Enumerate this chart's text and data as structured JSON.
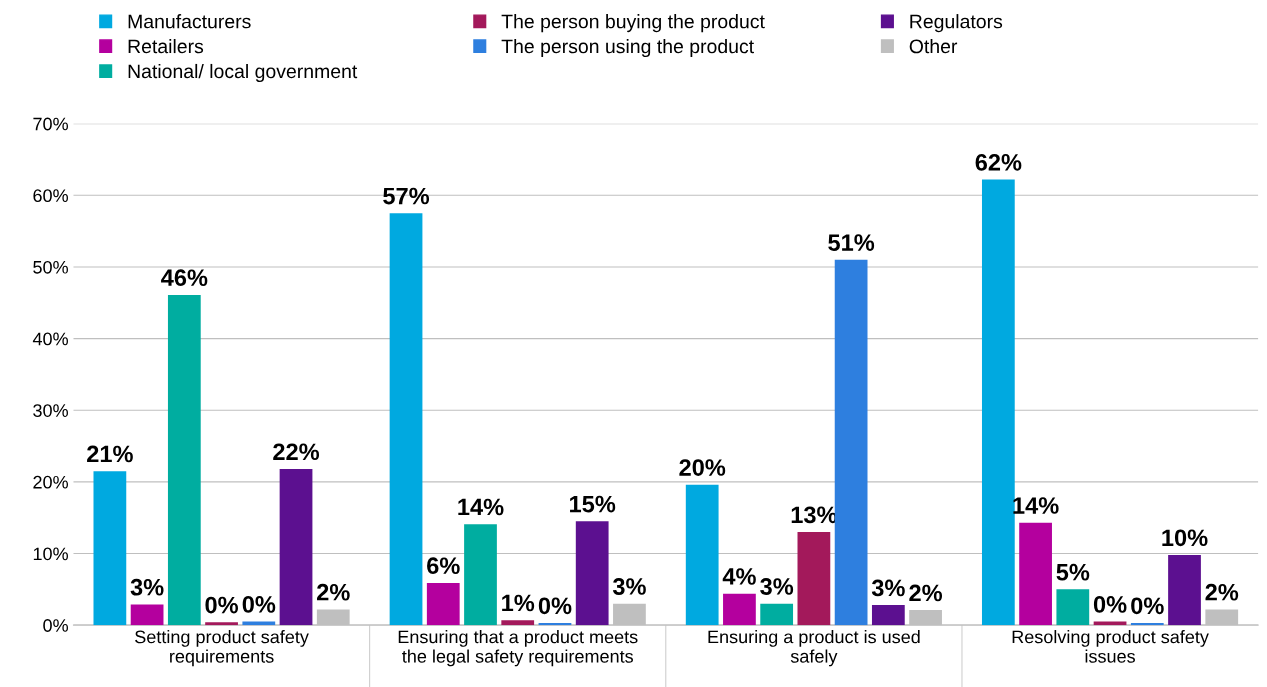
{
  "chart_data": {
    "type": "bar",
    "categories": [
      "Setting product safety\nrequirements",
      "Ensuring that a product meets\nthe legal safety requirements",
      "Ensuring a product is used\nsafely",
      "Resolving product safety\nissues"
    ],
    "series": [
      {
        "name": "Manufacturers",
        "color": "#00a9e0",
        "values": [
          21.5,
          57.5,
          19.6,
          62.2
        ],
        "value_labels": [
          "21%",
          "57%",
          "20%",
          "62%"
        ]
      },
      {
        "name": "Retailers",
        "color": "#b4009e",
        "values": [
          2.9,
          5.9,
          4.4,
          14.3
        ],
        "value_labels": [
          "3%",
          "6%",
          "4%",
          "14%"
        ]
      },
      {
        "name": "National/ local government",
        "color": "#00ada0",
        "values": [
          46.1,
          14.1,
          3.0,
          5.0
        ],
        "value_labels": [
          "46%",
          "14%",
          "3%",
          "5%"
        ]
      },
      {
        "name": "The person buying the product",
        "color": "#a3195b",
        "values": [
          0.4,
          0.7,
          13.0,
          0.5
        ],
        "value_labels": [
          "0%",
          "1%",
          "13%",
          "0%"
        ]
      },
      {
        "name": "The person using the product",
        "color": "#2e7fdf",
        "values": [
          0.5,
          0.3,
          51.0,
          0.3
        ],
        "value_labels": [
          "0%",
          "0%",
          "51%",
          "0%"
        ]
      },
      {
        "name": "Regulators",
        "color": "#5c1090",
        "values": [
          21.8,
          14.5,
          2.8,
          9.8
        ],
        "value_labels": [
          "22%",
          "15%",
          "3%",
          "10%"
        ]
      },
      {
        "name": "Other",
        "color": "#bfbfbf",
        "values": [
          2.2,
          3.0,
          2.1,
          2.2
        ],
        "value_labels": [
          "2%",
          "3%",
          "2%",
          "2%"
        ]
      }
    ],
    "ylim": [
      0,
      70
    ],
    "yticks": [
      {
        "value": 0,
        "label": "0%"
      },
      {
        "value": 10,
        "label": "10%"
      },
      {
        "value": 20,
        "label": "20%"
      },
      {
        "value": 30,
        "label": "30%"
      },
      {
        "value": 40,
        "label": "40%"
      },
      {
        "value": 50,
        "label": "50%"
      },
      {
        "value": 60,
        "label": "60%"
      },
      {
        "value": 70,
        "label": "70%"
      }
    ],
    "grid": "y",
    "legend": "top"
  }
}
